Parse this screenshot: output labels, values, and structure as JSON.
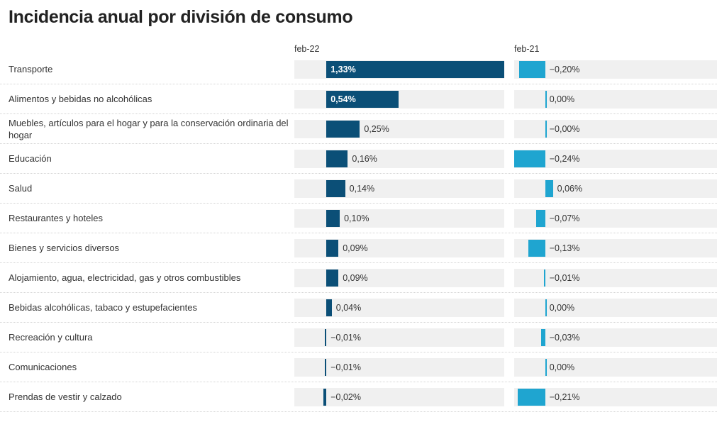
{
  "chart_data": {
    "type": "bar",
    "title": "Incidencia anual por división de consumo",
    "categories": [
      "Transporte",
      "Alimentos y bebidas no alcohólicas",
      "Muebles, artículos para el hogar y para la conservación ordinaria del hogar",
      "Educación",
      "Salud",
      "Restaurantes y hoteles",
      "Bienes y servicios diversos",
      "Alojamiento, agua, electricidad, gas y otros combustibles",
      "Bebidas alcohólicas, tabaco y estupefacientes",
      "Recreación y cultura",
      "Comunicaciones",
      "Prendas de vestir y calzado"
    ],
    "series": [
      {
        "name": "feb-22",
        "color": "#0b4f77",
        "values": [
          1.33,
          0.54,
          0.25,
          0.16,
          0.14,
          0.1,
          0.09,
          0.09,
          0.04,
          -0.01,
          -0.01,
          -0.02
        ],
        "value_labels": [
          "1,33%",
          "0,54%",
          "0,25%",
          "0,16%",
          "0,14%",
          "0,10%",
          "0,09%",
          "0,09%",
          "0,04%",
          "−0,01%",
          "−0,01%",
          "−0,02%"
        ]
      },
      {
        "name": "feb-21",
        "color": "#1fa5d0",
        "values": [
          -0.2,
          0.0,
          0,
          -0.24,
          0.06,
          -0.07,
          -0.13,
          -0.01,
          0.0,
          -0.03,
          0.0,
          -0.21
        ],
        "value_labels": [
          "−0,20%",
          "0,00%",
          "−0,00%",
          "−0,24%",
          "0,06%",
          "−0,07%",
          "−0,13%",
          "−0,01%",
          "0,00%",
          "−0,03%",
          "0,00%",
          "−0,21%"
        ]
      }
    ],
    "xlim": [
      -0.24,
      1.33
    ]
  }
}
